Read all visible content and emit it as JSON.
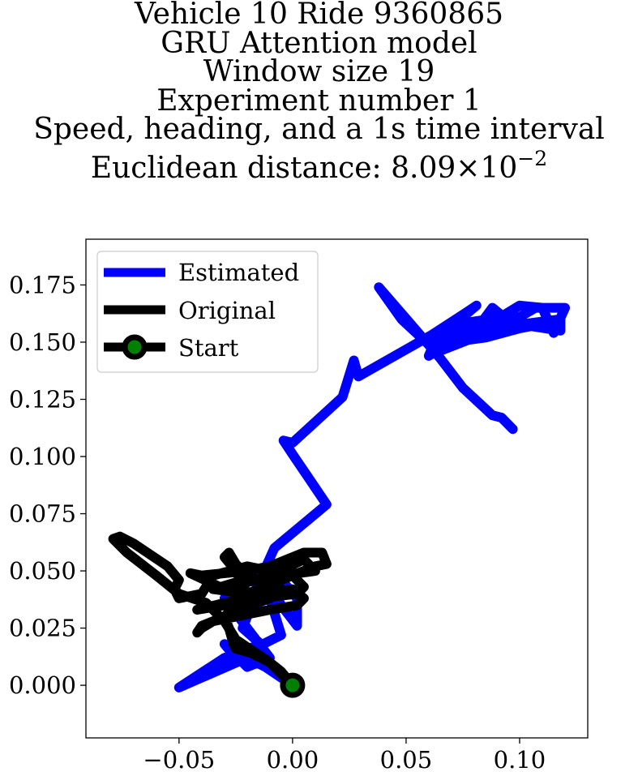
{
  "chart_data": {
    "type": "line",
    "title_lines": [
      "Vehicle 10 Ride 9360865",
      "GRU Attention model",
      "Window size 19",
      "Experiment number 1",
      "Speed, heading, and a 1s time interval"
    ],
    "title_distance_prefix": "Euclidean distance: 8.09",
    "title_distance_times": "×",
    "title_distance_base": "10",
    "title_distance_exponent": "−2",
    "xlabel": "",
    "ylabel": "",
    "xlim": [
      -0.091,
      0.13
    ],
    "ylim": [
      -0.023,
      0.195
    ],
    "x_ticks": [
      {
        "value": -0.05,
        "label": "−0.05"
      },
      {
        "value": 0.0,
        "label": "0.00"
      },
      {
        "value": 0.05,
        "label": "0.05"
      },
      {
        "value": 0.1,
        "label": "0.10"
      }
    ],
    "y_ticks": [
      {
        "value": 0.0,
        "label": "0.000"
      },
      {
        "value": 0.025,
        "label": "0.025"
      },
      {
        "value": 0.05,
        "label": "0.050"
      },
      {
        "value": 0.075,
        "label": "0.075"
      },
      {
        "value": 0.1,
        "label": "0.100"
      },
      {
        "value": 0.125,
        "label": "0.125"
      },
      {
        "value": 0.15,
        "label": "0.150"
      },
      {
        "value": 0.175,
        "label": "0.175"
      }
    ],
    "grid": false,
    "legend_position": "top-left",
    "series": [
      {
        "name": "Estimated",
        "color": "#0000ff",
        "points": [
          [
            0.0,
            0.0
          ],
          [
            -0.012,
            0.008
          ],
          [
            -0.02,
            0.012
          ],
          [
            -0.05,
            -0.001
          ],
          [
            -0.03,
            0.012
          ],
          [
            -0.014,
            0.018
          ],
          [
            -0.022,
            0.025
          ],
          [
            -0.018,
            0.035
          ],
          [
            -0.01,
            0.038
          ],
          [
            -0.005,
            0.022
          ],
          [
            -0.025,
            0.012
          ],
          [
            -0.03,
            0.018
          ],
          [
            -0.02,
            0.008
          ],
          [
            -0.01,
            0.012
          ],
          [
            -0.03,
            0.038
          ],
          [
            -0.02,
            0.05
          ],
          [
            -0.01,
            0.052
          ],
          [
            0.002,
            0.038
          ],
          [
            0.002,
            0.026
          ],
          [
            -0.005,
            0.035
          ],
          [
            -0.012,
            0.048
          ],
          [
            -0.018,
            0.038
          ],
          [
            -0.008,
            0.06
          ],
          [
            0.015,
            0.079
          ],
          [
            0.0,
            0.101
          ],
          [
            -0.004,
            0.107
          ],
          [
            0.0,
            0.106
          ],
          [
            0.022,
            0.126
          ],
          [
            0.027,
            0.142
          ],
          [
            0.029,
            0.135
          ],
          [
            0.061,
            0.153
          ],
          [
            0.075,
            0.162
          ],
          [
            0.081,
            0.166
          ],
          [
            0.063,
            0.151
          ],
          [
            0.06,
            0.144
          ],
          [
            0.082,
            0.157
          ],
          [
            0.088,
            0.165
          ],
          [
            0.093,
            0.161
          ],
          [
            0.073,
            0.158
          ],
          [
            0.083,
            0.157
          ],
          [
            0.1,
            0.161
          ],
          [
            0.107,
            0.165
          ],
          [
            0.12,
            0.165
          ],
          [
            0.115,
            0.154
          ],
          [
            0.11,
            0.165
          ],
          [
            0.1,
            0.166
          ],
          [
            0.09,
            0.16
          ],
          [
            0.075,
            0.156
          ],
          [
            0.068,
            0.15
          ],
          [
            0.062,
            0.145
          ],
          [
            0.08,
            0.152
          ],
          [
            0.095,
            0.156
          ],
          [
            0.102,
            0.158
          ],
          [
            0.118,
            0.16
          ],
          [
            0.118,
            0.155
          ],
          [
            0.105,
            0.157
          ],
          [
            0.1,
            0.156
          ],
          [
            0.085,
            0.152
          ],
          [
            0.07,
            0.15
          ],
          [
            0.062,
            0.147
          ],
          [
            0.048,
            0.16
          ],
          [
            0.038,
            0.174
          ],
          [
            0.052,
            0.158
          ],
          [
            0.065,
            0.143
          ],
          [
            0.075,
            0.13
          ],
          [
            0.088,
            0.118
          ],
          [
            0.092,
            0.117
          ],
          [
            0.097,
            0.112
          ]
        ]
      },
      {
        "name": "Original",
        "color": "#000000",
        "points": [
          [
            0.0,
            0.0
          ],
          [
            -0.01,
            0.01
          ],
          [
            -0.025,
            0.02
          ],
          [
            -0.03,
            0.028
          ],
          [
            -0.038,
            0.036
          ],
          [
            -0.05,
            0.04
          ],
          [
            -0.06,
            0.048
          ],
          [
            -0.073,
            0.058
          ],
          [
            -0.079,
            0.064
          ],
          [
            -0.076,
            0.065
          ],
          [
            -0.07,
            0.062
          ],
          [
            -0.055,
            0.052
          ],
          [
            -0.05,
            0.046
          ],
          [
            -0.052,
            0.042
          ],
          [
            -0.05,
            0.038
          ],
          [
            -0.04,
            0.04
          ],
          [
            -0.035,
            0.048
          ],
          [
            -0.02,
            0.052
          ],
          [
            -0.01,
            0.05
          ],
          [
            0.0,
            0.048
          ],
          [
            0.01,
            0.052
          ],
          [
            0.015,
            0.053
          ],
          [
            0.013,
            0.058
          ],
          [
            0.005,
            0.058
          ],
          [
            -0.01,
            0.052
          ],
          [
            -0.02,
            0.05
          ],
          [
            -0.04,
            0.048
          ],
          [
            -0.045,
            0.049
          ],
          [
            -0.03,
            0.042
          ],
          [
            -0.01,
            0.048
          ],
          [
            0.005,
            0.055
          ],
          [
            0.01,
            0.05
          ],
          [
            -0.005,
            0.048
          ],
          [
            -0.025,
            0.045
          ],
          [
            -0.035,
            0.042
          ],
          [
            -0.02,
            0.04
          ],
          [
            0.0,
            0.048
          ],
          [
            0.005,
            0.043
          ],
          [
            0.002,
            0.04
          ],
          [
            -0.015,
            0.038
          ],
          [
            -0.03,
            0.035
          ],
          [
            -0.042,
            0.033
          ],
          [
            -0.03,
            0.036
          ],
          [
            -0.01,
            0.04
          ],
          [
            0.0,
            0.042
          ],
          [
            0.005,
            0.038
          ],
          [
            0.002,
            0.035
          ],
          [
            -0.01,
            0.033
          ],
          [
            -0.025,
            0.03
          ],
          [
            -0.035,
            0.028
          ],
          [
            -0.04,
            0.025
          ],
          [
            -0.042,
            0.023
          ],
          [
            -0.04,
            0.026
          ],
          [
            -0.03,
            0.03
          ],
          [
            -0.02,
            0.035
          ],
          [
            -0.01,
            0.038
          ],
          [
            -0.005,
            0.042
          ],
          [
            -0.02,
            0.048
          ],
          [
            -0.025,
            0.053
          ],
          [
            -0.028,
            0.058
          ],
          [
            -0.03,
            0.056
          ],
          [
            -0.025,
            0.05
          ],
          [
            -0.02,
            0.04
          ],
          [
            -0.025,
            0.035
          ],
          [
            -0.03,
            0.03
          ],
          [
            -0.028,
            0.025
          ],
          [
            -0.026,
            0.018
          ],
          [
            -0.025,
            0.016
          ],
          [
            -0.018,
            0.014
          ],
          [
            -0.01,
            0.01
          ],
          [
            -0.005,
            0.006
          ],
          [
            0.0,
            0.0
          ]
        ]
      }
    ],
    "start_marker": {
      "name": "Start",
      "x": 0.0,
      "y": 0.0,
      "fill": "#008000",
      "edge": "#000000"
    }
  }
}
